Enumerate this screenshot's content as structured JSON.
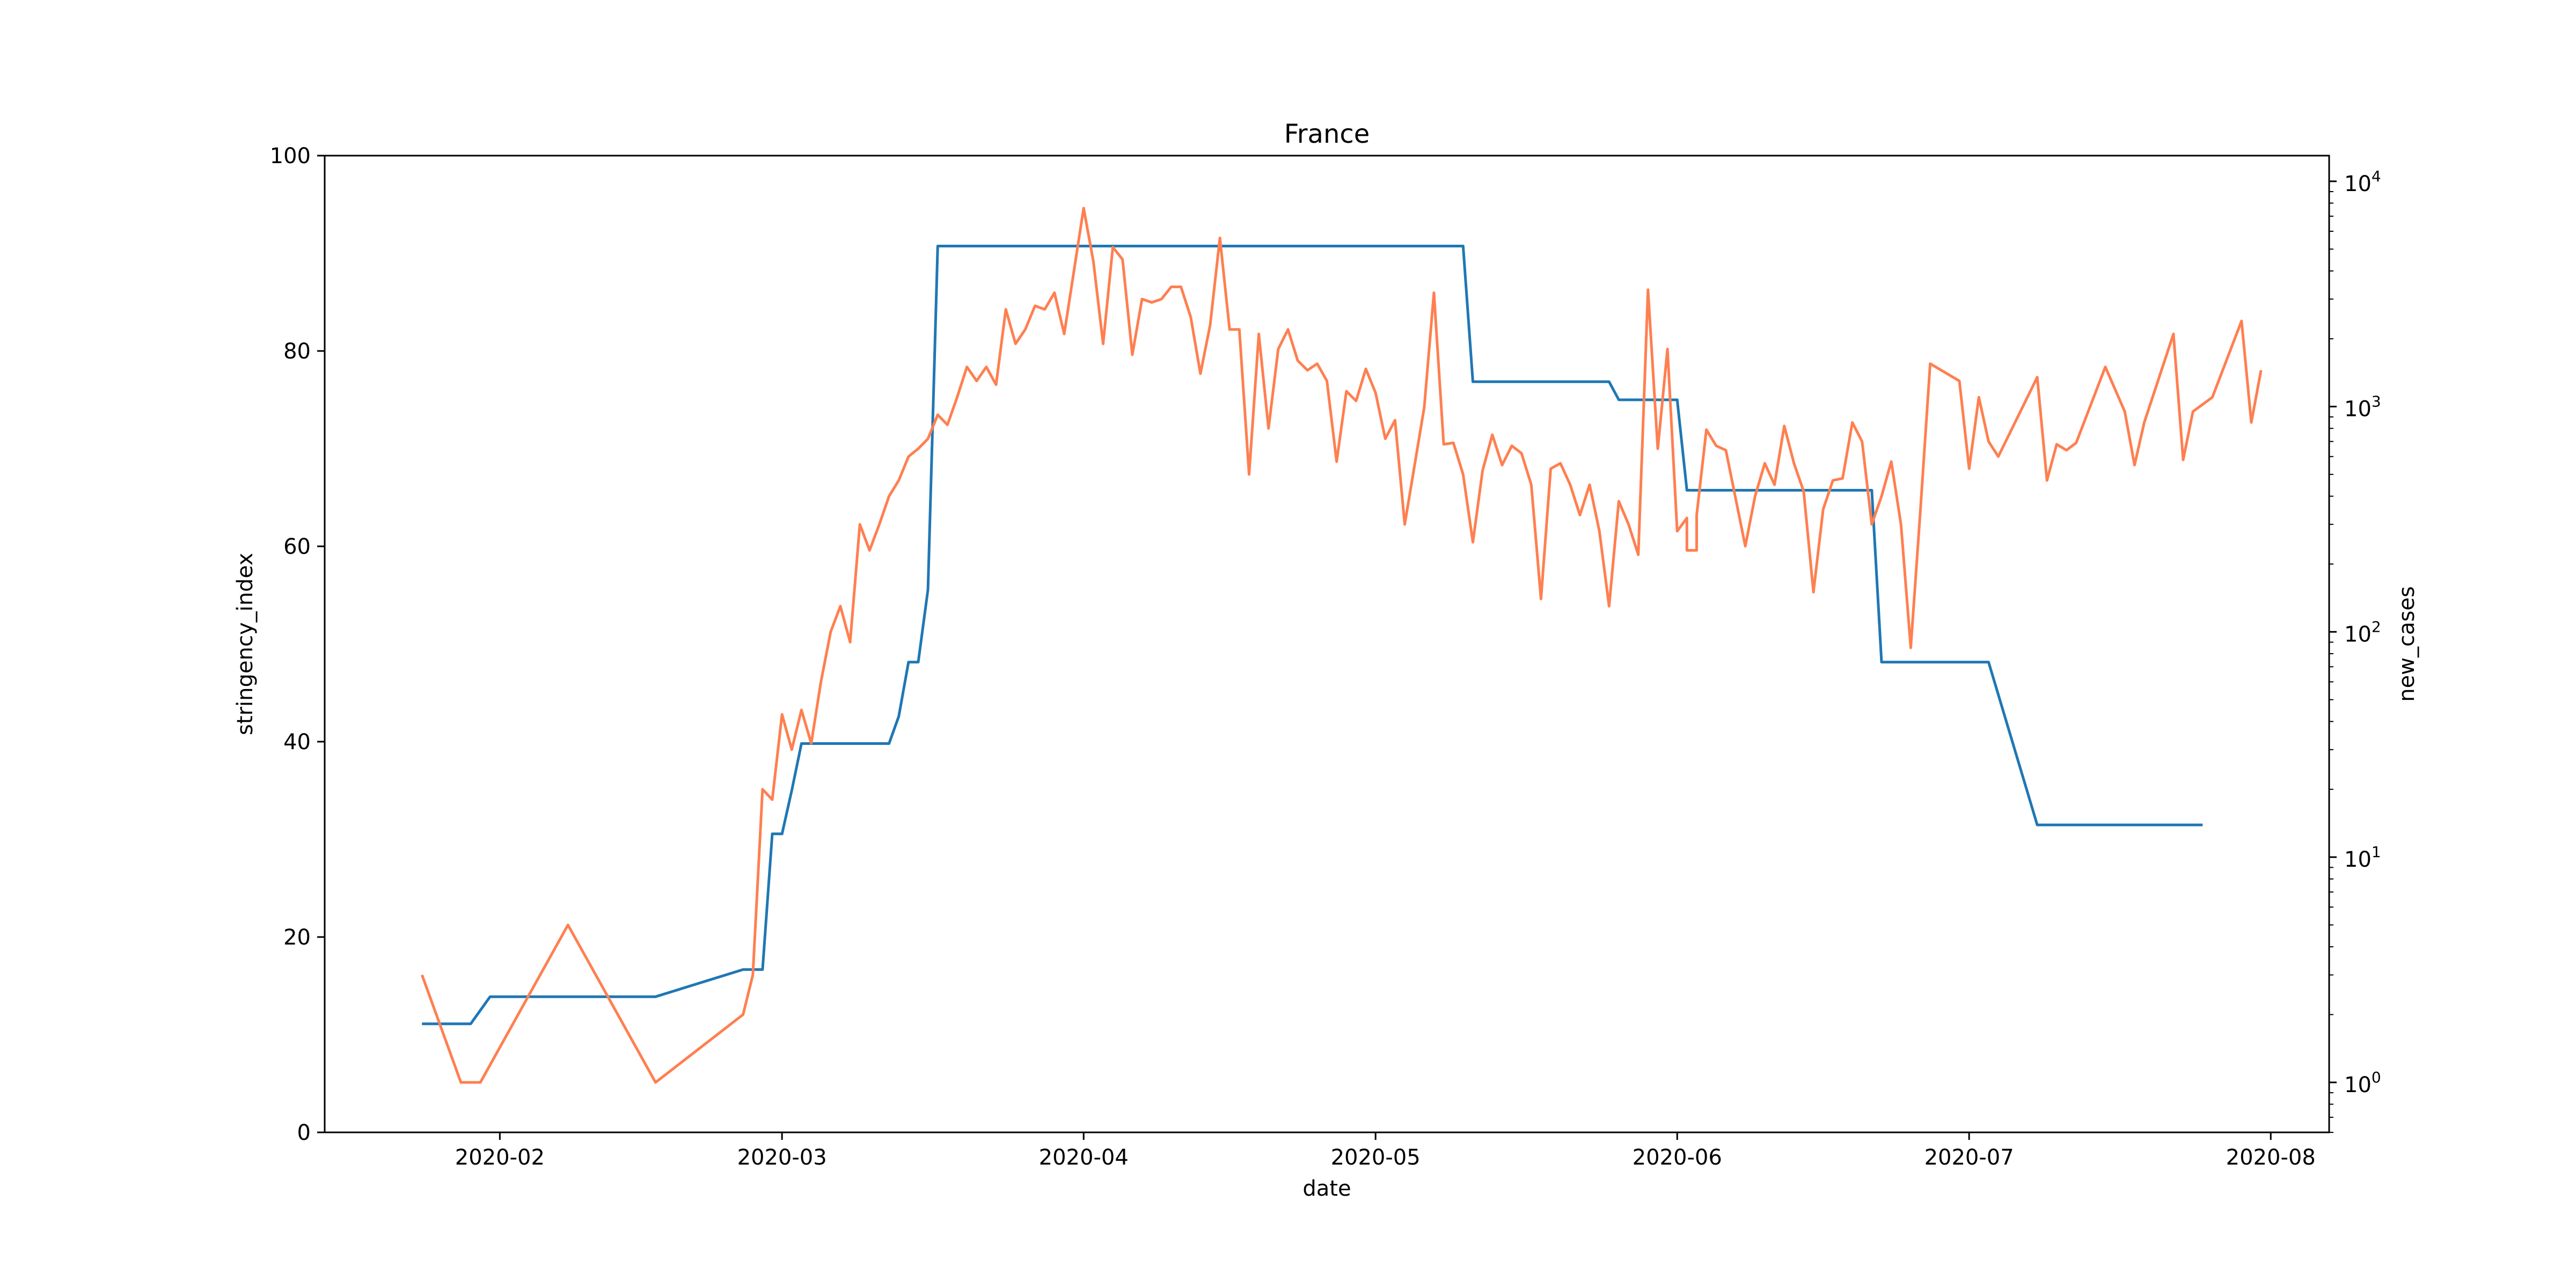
{
  "chart_data": {
    "type": "line",
    "title": "France",
    "xlabel": "date",
    "ylabel": "stringency_index",
    "y2label": "new_cases",
    "x_range": [
      "2020-01-14",
      "2020-08-07"
    ],
    "ylim": [
      0,
      100
    ],
    "y2lim": [
      0.6,
      13000
    ],
    "y2scale": "log",
    "grid": false,
    "x_ticks": [
      {
        "date": "2020-02-01",
        "label": "2020-02"
      },
      {
        "date": "2020-03-01",
        "label": "2020-03"
      },
      {
        "date": "2020-04-01",
        "label": "2020-04"
      },
      {
        "date": "2020-05-01",
        "label": "2020-05"
      },
      {
        "date": "2020-06-01",
        "label": "2020-06"
      },
      {
        "date": "2020-07-01",
        "label": "2020-07"
      },
      {
        "date": "2020-08-01",
        "label": "2020-08"
      }
    ],
    "y_ticks": [
      {
        "value": 0,
        "label": "0"
      },
      {
        "value": 20,
        "label": "20"
      },
      {
        "value": 40,
        "label": "40"
      },
      {
        "value": 60,
        "label": "60"
      },
      {
        "value": 80,
        "label": "80"
      },
      {
        "value": 100,
        "label": "100"
      }
    ],
    "y2_ticks": [
      {
        "value": 1,
        "base": "10",
        "exp": "0"
      },
      {
        "value": 10,
        "base": "10",
        "exp": "1"
      },
      {
        "value": 100,
        "base": "10",
        "exp": "2"
      },
      {
        "value": 1000,
        "base": "10",
        "exp": "3"
      },
      {
        "value": 10000,
        "base": "10",
        "exp": "4"
      }
    ],
    "series": [
      {
        "axis": "left",
        "color": "#1f77b4",
        "points": [
          [
            "2020-01-24",
            11.11
          ],
          [
            "2020-01-29",
            11.11
          ],
          [
            "2020-01-31",
            13.89
          ],
          [
            "2020-02-17",
            13.89
          ],
          [
            "2020-02-26",
            16.67
          ],
          [
            "2020-02-28",
            16.67
          ],
          [
            "2020-02-29",
            30.56
          ],
          [
            "2020-03-01",
            30.56
          ],
          [
            "2020-03-02",
            35.0
          ],
          [
            "2020-03-03",
            39.81
          ],
          [
            "2020-03-12",
            39.81
          ],
          [
            "2020-03-13",
            42.59
          ],
          [
            "2020-03-14",
            48.15
          ],
          [
            "2020-03-15",
            48.15
          ],
          [
            "2020-03-16",
            55.56
          ],
          [
            "2020-03-17",
            90.74
          ],
          [
            "2020-05-10",
            90.74
          ],
          [
            "2020-05-11",
            76.85
          ],
          [
            "2020-05-25",
            76.85
          ],
          [
            "2020-05-26",
            75.0
          ],
          [
            "2020-06-01",
            75.0
          ],
          [
            "2020-06-02",
            65.74
          ],
          [
            "2020-06-21",
            65.74
          ],
          [
            "2020-06-22",
            48.15
          ],
          [
            "2020-07-03",
            48.15
          ],
          [
            "2020-07-08",
            31.48
          ],
          [
            "2020-07-25",
            31.48
          ]
        ]
      },
      {
        "axis": "right",
        "color": "#ff7f50",
        "points": [
          [
            "2020-01-24",
            3
          ],
          [
            "2020-01-28",
            1
          ],
          [
            "2020-01-30",
            1
          ],
          [
            "2020-02-08",
            5
          ],
          [
            "2020-02-17",
            1
          ],
          [
            "2020-02-26",
            2
          ],
          [
            "2020-02-27",
            3
          ],
          [
            "2020-02-28",
            20
          ],
          [
            "2020-02-29",
            18
          ],
          [
            "2020-03-01",
            43
          ],
          [
            "2020-03-02",
            30
          ],
          [
            "2020-03-03",
            45
          ],
          [
            "2020-03-04",
            32
          ],
          [
            "2020-03-05",
            60
          ],
          [
            "2020-03-06",
            100
          ],
          [
            "2020-03-07",
            130
          ],
          [
            "2020-03-08",
            90
          ],
          [
            "2020-03-09",
            300
          ],
          [
            "2020-03-10",
            230
          ],
          [
            "2020-03-11",
            300
          ],
          [
            "2020-03-12",
            400
          ],
          [
            "2020-03-13",
            470
          ],
          [
            "2020-03-14",
            600
          ],
          [
            "2020-03-15",
            650
          ],
          [
            "2020-03-16",
            720
          ],
          [
            "2020-03-17",
            920
          ],
          [
            "2020-03-18",
            830
          ],
          [
            "2020-03-19",
            1100
          ],
          [
            "2020-03-20",
            1500
          ],
          [
            "2020-03-21",
            1300
          ],
          [
            "2020-03-22",
            1500
          ],
          [
            "2020-03-23",
            1250
          ],
          [
            "2020-03-24",
            2700
          ],
          [
            "2020-03-25",
            1900
          ],
          [
            "2020-03-26",
            2200
          ],
          [
            "2020-03-27",
            2800
          ],
          [
            "2020-03-28",
            2700
          ],
          [
            "2020-03-29",
            3200
          ],
          [
            "2020-03-30",
            2100
          ],
          [
            "2020-04-01",
            7600
          ],
          [
            "2020-04-02",
            4400
          ],
          [
            "2020-04-03",
            1900
          ],
          [
            "2020-04-04",
            5100
          ],
          [
            "2020-04-05",
            4500
          ],
          [
            "2020-04-06",
            1700
          ],
          [
            "2020-04-07",
            3000
          ],
          [
            "2020-04-08",
            2900
          ],
          [
            "2020-04-09",
            3000
          ],
          [
            "2020-04-10",
            3400
          ],
          [
            "2020-04-11",
            3400
          ],
          [
            "2020-04-12",
            2500
          ],
          [
            "2020-04-13",
            1400
          ],
          [
            "2020-04-14",
            2300
          ],
          [
            "2020-04-15",
            5600
          ],
          [
            "2020-04-16",
            2200
          ],
          [
            "2020-04-17",
            2200
          ],
          [
            "2020-04-18",
            500
          ],
          [
            "2020-04-19",
            2100
          ],
          [
            "2020-04-20",
            800
          ],
          [
            "2020-04-21",
            1800
          ],
          [
            "2020-04-22",
            2200
          ],
          [
            "2020-04-23",
            1600
          ],
          [
            "2020-04-24",
            1450
          ],
          [
            "2020-04-25",
            1550
          ],
          [
            "2020-04-26",
            1300
          ],
          [
            "2020-04-27",
            570
          ],
          [
            "2020-04-28",
            1170
          ],
          [
            "2020-04-29",
            1060
          ],
          [
            "2020-04-30",
            1470
          ],
          [
            "2020-05-01",
            1150
          ],
          [
            "2020-05-02",
            720
          ],
          [
            "2020-05-03",
            870
          ],
          [
            "2020-05-04",
            300
          ],
          [
            "2020-05-06",
            990
          ],
          [
            "2020-05-07",
            3200
          ],
          [
            "2020-05-08",
            680
          ],
          [
            "2020-05-09",
            690
          ],
          [
            "2020-05-10",
            500
          ],
          [
            "2020-05-11",
            250
          ],
          [
            "2020-05-12",
            520
          ],
          [
            "2020-05-13",
            750
          ],
          [
            "2020-05-14",
            550
          ],
          [
            "2020-05-15",
            670
          ],
          [
            "2020-05-16",
            620
          ],
          [
            "2020-05-17",
            450
          ],
          [
            "2020-05-18",
            140
          ],
          [
            "2020-05-19",
            530
          ],
          [
            "2020-05-20",
            560
          ],
          [
            "2020-05-21",
            450
          ],
          [
            "2020-05-22",
            330
          ],
          [
            "2020-05-23",
            450
          ],
          [
            "2020-05-24",
            280
          ],
          [
            "2020-05-25",
            130
          ],
          [
            "2020-05-26",
            380
          ],
          [
            "2020-05-27",
            300
          ],
          [
            "2020-05-28",
            220
          ],
          [
            "2020-05-29",
            3300
          ],
          [
            "2020-05-30",
            650
          ],
          [
            "2020-05-31",
            1800
          ],
          [
            "2020-06-01",
            280
          ],
          [
            "2020-06-02",
            320
          ],
          [
            "2020-06-02",
            230
          ],
          [
            "2020-06-03",
            230
          ],
          [
            "2020-06-03",
            330
          ],
          [
            "2020-06-04",
            790
          ],
          [
            "2020-06-05",
            670
          ],
          [
            "2020-06-06",
            640
          ],
          [
            "2020-06-08",
            240
          ],
          [
            "2020-06-09",
            400
          ],
          [
            "2020-06-10",
            560
          ],
          [
            "2020-06-11",
            450
          ],
          [
            "2020-06-12",
            820
          ],
          [
            "2020-06-13",
            560
          ],
          [
            "2020-06-14",
            420
          ],
          [
            "2020-06-15",
            150
          ],
          [
            "2020-06-16",
            350
          ],
          [
            "2020-06-17",
            470
          ],
          [
            "2020-06-18",
            480
          ],
          [
            "2020-06-19",
            850
          ],
          [
            "2020-06-20",
            700
          ],
          [
            "2020-06-21",
            300
          ],
          [
            "2020-06-22",
            400
          ],
          [
            "2020-06-23",
            570
          ],
          [
            "2020-06-24",
            300
          ],
          [
            "2020-06-25",
            85
          ],
          [
            "2020-06-26",
            350
          ],
          [
            "2020-06-27",
            1550
          ],
          [
            "2020-06-30",
            1300
          ],
          [
            "2020-07-01",
            530
          ],
          [
            "2020-07-02",
            1100
          ],
          [
            "2020-07-03",
            700
          ],
          [
            "2020-07-04",
            600
          ],
          [
            "2020-07-08",
            1350
          ],
          [
            "2020-07-09",
            470
          ],
          [
            "2020-07-10",
            680
          ],
          [
            "2020-07-11",
            640
          ],
          [
            "2020-07-12",
            690
          ],
          [
            "2020-07-15",
            1500
          ],
          [
            "2020-07-17",
            950
          ],
          [
            "2020-07-18",
            550
          ],
          [
            "2020-07-19",
            850
          ],
          [
            "2020-07-22",
            2100
          ],
          [
            "2020-07-23",
            580
          ],
          [
            "2020-07-24",
            950
          ],
          [
            "2020-07-26",
            1100
          ],
          [
            "2020-07-29",
            2400
          ],
          [
            "2020-07-30",
            850
          ],
          [
            "2020-07-31",
            1450
          ]
        ]
      }
    ]
  }
}
